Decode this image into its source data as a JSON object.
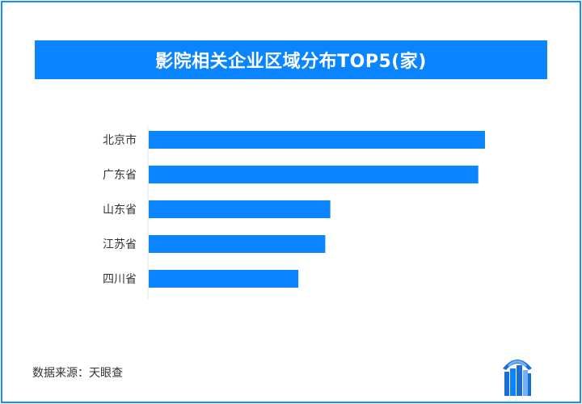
{
  "title": "影院相关企业区域分布TOP5(家)",
  "source": "数据来源：天眼查",
  "colors": {
    "accent": "#0a84ff",
    "bar": "#0a84ff",
    "border": "#1a8cff",
    "text": "#333333"
  },
  "logo_icon": "building-logo-icon",
  "chart_data": {
    "type": "bar",
    "orientation": "horizontal",
    "title": "影院相关企业区域分布TOP5(家)",
    "categories": [
      "北京市",
      "广东省",
      "山东省",
      "江苏省",
      "四川省"
    ],
    "values": [
      1000,
      980,
      540,
      525,
      445
    ],
    "xlim": [
      0,
      1000
    ],
    "grid": false,
    "legend": "none"
  }
}
